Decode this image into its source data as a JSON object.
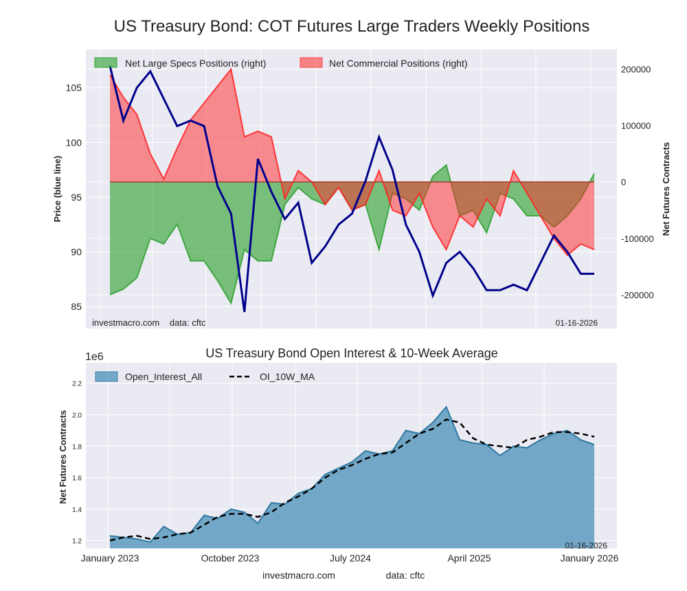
{
  "chart_data": [
    {
      "type": "area",
      "title": "US Treasury Bond: COT Futures Large Traders Weekly Positions",
      "ylabel_left": "Price (blue line)",
      "ylabel_right": "Net Futures Contracts",
      "ylim_left": [
        83,
        108.5
      ],
      "ylim_right": [
        -260000,
        235000
      ],
      "yticks_left": [
        "85",
        "90",
        "95",
        "100",
        "105"
      ],
      "yticks_right": [
        "-200000",
        "-100000",
        "0",
        "100000",
        "200000"
      ],
      "legend": [
        "Net Large Specs Positions (right)",
        "Net Commercial Positions (right)"
      ],
      "legend_placement": "top-left",
      "grid": true,
      "source_note": "investmacro.com    data: cftc",
      "date_note": "01-16-2026",
      "x": [
        "2023-01",
        "2023-02",
        "2023-03",
        "2023-04",
        "2023-05",
        "2023-06",
        "2023-07",
        "2023-08",
        "2023-09",
        "2023-10",
        "2023-11",
        "2023-12",
        "2024-01",
        "2024-02",
        "2024-03",
        "2024-04",
        "2024-05",
        "2024-06",
        "2024-07",
        "2024-08",
        "2024-09",
        "2024-10",
        "2024-11",
        "2024-12",
        "2025-01",
        "2025-02",
        "2025-03",
        "2025-04",
        "2025-05",
        "2025-06",
        "2025-07",
        "2025-08",
        "2025-09",
        "2025-10",
        "2025-11",
        "2025-12",
        "2026-01"
      ],
      "series": [
        {
          "name": "Price",
          "color": "#00008b",
          "values": [
            107,
            102,
            105,
            106.5,
            104,
            101.5,
            102,
            101.5,
            96,
            93.5,
            84.5,
            98.5,
            95.5,
            93,
            94.5,
            89,
            90.5,
            92.5,
            93.5,
            96.5,
            100.5,
            97.5,
            92.5,
            90,
            86,
            89,
            90,
            88.5,
            86.5,
            86.5,
            87,
            86.5,
            89,
            91.5,
            90,
            88,
            88
          ]
        },
        {
          "name": "Net Large Specs Positions (right)",
          "color": "#2ca02c",
          "values": [
            -200000,
            -190000,
            -170000,
            -100000,
            -110000,
            -75000,
            -140000,
            -140000,
            -175000,
            -215000,
            -120000,
            -140000,
            -140000,
            -40000,
            -10000,
            -30000,
            -40000,
            -10000,
            -50000,
            -40000,
            -120000,
            -20000,
            -30000,
            -50000,
            10000,
            30000,
            -60000,
            -50000,
            -90000,
            -20000,
            -30000,
            -60000,
            -60000,
            -80000,
            -60000,
            -30000,
            15000
          ]
        },
        {
          "name": "Net Commercial Positions (right)",
          "color": "#ff2020",
          "values": [
            190000,
            150000,
            120000,
            50000,
            5000,
            60000,
            110000,
            140000,
            170000,
            200000,
            80000,
            90000,
            80000,
            -30000,
            20000,
            0,
            -40000,
            -10000,
            -50000,
            -40000,
            20000,
            -50000,
            -60000,
            -20000,
            -80000,
            -120000,
            -60000,
            -80000,
            -30000,
            -60000,
            20000,
            -20000,
            -60000,
            -100000,
            -130000,
            -110000,
            -120000
          ]
        }
      ]
    },
    {
      "type": "area",
      "title": "US Treasury Bond Open Interest & 10-Week Average",
      "ylabel": "Net Futures Contracts",
      "offset_label": "1e6",
      "ylim": [
        1.15,
        2.33
      ],
      "yticks": [
        "1.2",
        "1.4",
        "1.6",
        "1.8",
        "2.0",
        "2.2"
      ],
      "xticks": [
        "January 2023",
        "October 2023",
        "July 2024",
        "April 2025",
        "January 2026"
      ],
      "legend": [
        "Open_Interest_All",
        "OI_10W_MA"
      ],
      "legend_placement": "top-left",
      "grid": true,
      "date_note": "01-16-2026",
      "footer_site": "investmacro.com",
      "footer_data": "data: cftc",
      "series": [
        {
          "name": "Open_Interest_All",
          "color": "#4a90b8",
          "values": [
            1.23,
            1.22,
            1.21,
            1.19,
            1.29,
            1.24,
            1.25,
            1.36,
            1.34,
            1.4,
            1.38,
            1.31,
            1.44,
            1.43,
            1.5,
            1.53,
            1.62,
            1.66,
            1.7,
            1.77,
            1.75,
            1.77,
            1.9,
            1.88,
            1.95,
            2.05,
            1.84,
            1.82,
            1.81,
            1.74,
            1.8,
            1.79,
            1.84,
            1.88,
            1.9,
            1.84,
            1.81
          ]
        },
        {
          "name": "OI_10W_MA",
          "color": "#000000",
          "values": [
            1.2,
            1.22,
            1.23,
            1.21,
            1.22,
            1.24,
            1.25,
            1.3,
            1.35,
            1.37,
            1.37,
            1.35,
            1.38,
            1.44,
            1.48,
            1.53,
            1.6,
            1.65,
            1.68,
            1.72,
            1.75,
            1.76,
            1.82,
            1.88,
            1.91,
            1.97,
            1.95,
            1.85,
            1.81,
            1.8,
            1.79,
            1.84,
            1.86,
            1.89,
            1.89,
            1.88,
            1.86
          ]
        }
      ]
    }
  ]
}
